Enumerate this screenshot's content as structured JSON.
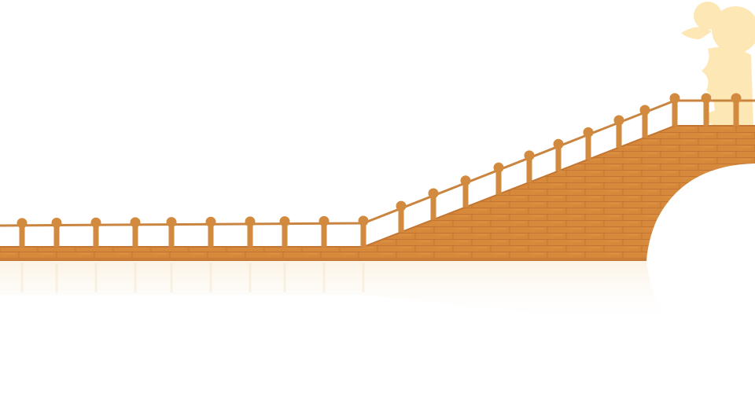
{
  "scene": {
    "description_visible_text": "",
    "elements": {
      "bridge": "brick-bridge",
      "railing": "bridge-railing",
      "character": "character-silhouette",
      "reflection": "water-reflection"
    }
  },
  "colors": {
    "background": "#ffffff",
    "brick": "#d6893a",
    "brick_line": "#c27632",
    "rail": "#c98540",
    "post": "#d28a3e",
    "character": "#fde8b5",
    "reflection": "#fbf3e6"
  }
}
